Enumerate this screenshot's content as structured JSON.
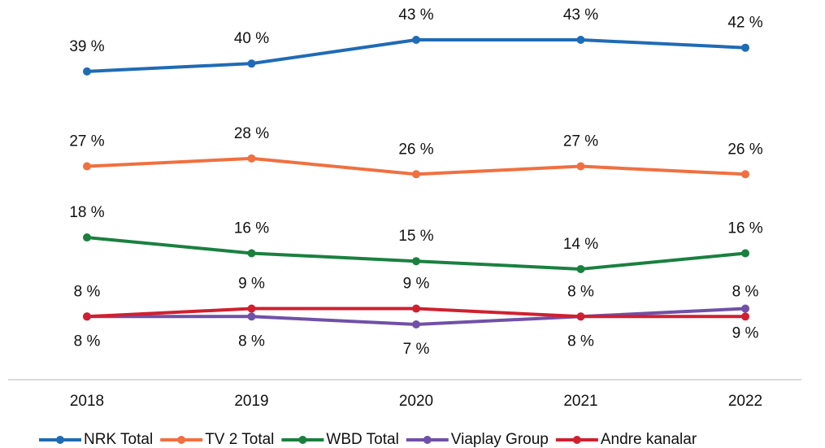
{
  "chart_data": {
    "type": "line",
    "categories": [
      "2018",
      "2019",
      "2020",
      "2021",
      "2022"
    ],
    "series": [
      {
        "name": "NRK Total",
        "color": "#1f6bb5",
        "values": [
          39,
          40,
          43,
          43,
          42
        ],
        "value_labels": [
          "39 %",
          "40 %",
          "43 %",
          "43 %",
          "42 %"
        ]
      },
      {
        "name": "TV 2 Total",
        "color": "#f07040",
        "values": [
          27,
          28,
          26,
          27,
          26
        ],
        "value_labels": [
          "27 %",
          "28 %",
          "26 %",
          "27 %",
          "26 %"
        ]
      },
      {
        "name": "WBD Total",
        "color": "#1a8040",
        "values": [
          18,
          16,
          15,
          14,
          16
        ],
        "value_labels": [
          "18 %",
          "16 %",
          "15 %",
          "14 %",
          "16 %"
        ]
      },
      {
        "name": "Viaplay Group",
        "color": "#7050a8",
        "values": [
          8,
          8,
          7,
          8,
          9
        ],
        "value_labels": [
          "8 %",
          "8 %",
          "7 %",
          "8 %",
          "9 %"
        ]
      },
      {
        "name": "Andre kanalar",
        "color": "#d02030",
        "values": [
          8,
          9,
          9,
          8,
          8
        ],
        "value_labels": [
          "8 %",
          "9 %",
          "9 %",
          "8 %",
          "8 %"
        ]
      }
    ]
  }
}
